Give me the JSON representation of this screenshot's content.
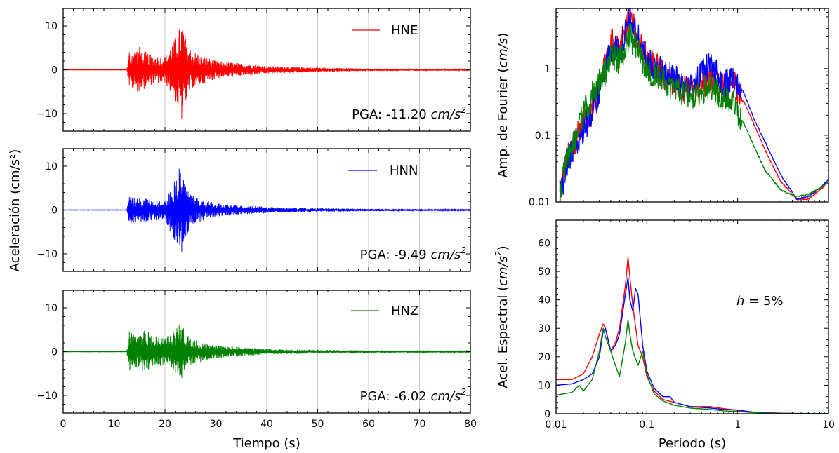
{
  "chart_data": [
    {
      "type": "line",
      "panel": "HNE",
      "xlabel": "Tiempo (s)",
      "ylabel": "Aceleración (cm/s²)",
      "xlim": [
        0,
        80
      ],
      "ylim": [
        -14,
        14
      ],
      "xticks": [
        "0",
        "10",
        "20",
        "30",
        "40",
        "50",
        "60",
        "70",
        "80"
      ],
      "yticks": [
        "−10",
        "0",
        "10"
      ],
      "grid": "x",
      "legend": "top-right",
      "series": [
        {
          "name": "HNE",
          "color": "#ff0000",
          "x": [
            0,
            12.5,
            13,
            15,
            17,
            20,
            22.8,
            23.3,
            25,
            30,
            40,
            50,
            60,
            70,
            80
          ],
          "y": [
            0,
            0,
            4.0,
            5.2,
            3.5,
            3.0,
            9.1,
            -11.2,
            4.5,
            2.0,
            0.9,
            0.5,
            0.3,
            0.25,
            0.2
          ]
        }
      ],
      "annotation": {
        "prefix": "PGA: -11.20 ",
        "unit_base": "cm/s",
        "unit_exp": "2"
      }
    },
    {
      "type": "line",
      "panel": "HNN",
      "xlim": [
        0,
        80
      ],
      "ylim": [
        -14,
        14
      ],
      "xticks": [
        "0",
        "10",
        "20",
        "30",
        "40",
        "50",
        "60",
        "70",
        "80"
      ],
      "yticks": [
        "−10",
        "0",
        "10"
      ],
      "grid": "x",
      "legend": "top-right",
      "series": [
        {
          "name": "HNN",
          "color": "#0000ff",
          "x": [
            0,
            12.5,
            13,
            15,
            17,
            20,
            22.8,
            23.3,
            25,
            30,
            40,
            50,
            60,
            70,
            80
          ],
          "y": [
            0,
            0,
            3.0,
            2.8,
            2.5,
            2.2,
            9.4,
            -9.49,
            3.5,
            1.5,
            0.7,
            0.4,
            0.3,
            0.2,
            0.2
          ]
        }
      ],
      "annotation": {
        "prefix": "PGA: -9.49 ",
        "unit_base": "cm/s",
        "unit_exp": "2"
      }
    },
    {
      "type": "line",
      "panel": "HNZ",
      "xlim": [
        0,
        80
      ],
      "ylim": [
        -14,
        14
      ],
      "xticks": [
        "0",
        "10",
        "20",
        "30",
        "40",
        "50",
        "60",
        "70",
        "80"
      ],
      "yticks": [
        "−10",
        "0",
        "10"
      ],
      "grid": "x",
      "legend": "top-right",
      "series": [
        {
          "name": "HNZ",
          "color": "#008000",
          "x": [
            0,
            12.5,
            13,
            15,
            16,
            20,
            22.8,
            23.3,
            25,
            30,
            40,
            50,
            60,
            70,
            80
          ],
          "y": [
            0,
            0,
            4.6,
            3.5,
            5.0,
            3.0,
            6.0,
            -6.02,
            3.0,
            1.5,
            0.6,
            0.4,
            0.3,
            0.2,
            0.2
          ]
        }
      ],
      "annotation": {
        "prefix": "PGA: -6.02 ",
        "unit_base": "cm/s",
        "unit_exp": "2"
      }
    },
    {
      "type": "line",
      "panel": "fourier",
      "ylabel_prefix": "Amp. de Fourier (",
      "ylabel_unit": "cm/s",
      "ylabel_suffix": ")",
      "xscale": "log",
      "yscale": "log",
      "xlim": [
        0.01,
        10
      ],
      "ylim": [
        0.01,
        8
      ],
      "yticks": [
        "0.01",
        "0.1",
        "1"
      ],
      "series": [
        {
          "color": "#ff0000",
          "x": [
            0.011,
            0.013,
            0.016,
            0.02,
            0.025,
            0.03,
            0.035,
            0.04,
            0.05,
            0.065,
            0.08,
            0.1,
            0.15,
            0.2,
            0.3,
            0.5,
            0.7,
            0.9,
            1.0,
            1.2,
            1.5,
            2,
            3,
            4.5,
            6,
            8,
            10
          ],
          "y": [
            0.011,
            0.04,
            0.08,
            0.15,
            0.25,
            0.5,
            1.5,
            2.5,
            2.0,
            6.5,
            2.5,
            1.5,
            0.8,
            0.6,
            0.45,
            0.7,
            0.5,
            0.65,
            0.4,
            0.3,
            0.15,
            0.06,
            0.02,
            0.011,
            0.011,
            0.015,
            0.02
          ]
        },
        {
          "color": "#0000ff",
          "x": [
            0.011,
            0.013,
            0.016,
            0.02,
            0.025,
            0.03,
            0.035,
            0.04,
            0.05,
            0.065,
            0.08,
            0.1,
            0.15,
            0.2,
            0.3,
            0.5,
            0.7,
            0.9,
            1.0,
            1.2,
            1.5,
            2,
            3,
            4.5,
            6,
            8,
            10
          ],
          "y": [
            0.012,
            0.035,
            0.07,
            0.12,
            0.22,
            0.4,
            1.0,
            2.0,
            1.8,
            5.5,
            3.0,
            1.2,
            0.9,
            0.7,
            0.5,
            1.2,
            0.55,
            0.7,
            0.65,
            0.4,
            0.18,
            0.08,
            0.025,
            0.011,
            0.012,
            0.016,
            0.022
          ]
        },
        {
          "color": "#008000",
          "x": [
            0.011,
            0.013,
            0.016,
            0.02,
            0.025,
            0.03,
            0.035,
            0.04,
            0.05,
            0.065,
            0.08,
            0.1,
            0.15,
            0.2,
            0.3,
            0.5,
            0.7,
            0.9,
            1.0,
            1.2,
            1.5,
            2,
            3,
            4.5,
            6,
            8,
            10
          ],
          "y": [
            0.013,
            0.04,
            0.09,
            0.2,
            0.4,
            0.6,
            0.9,
            1.5,
            1.3,
            3.0,
            2.0,
            1.0,
            0.7,
            0.5,
            0.4,
            0.55,
            0.35,
            0.3,
            0.22,
            0.14,
            0.07,
            0.03,
            0.015,
            0.012,
            0.013,
            0.016,
            0.02
          ]
        }
      ]
    },
    {
      "type": "line",
      "panel": "spectral",
      "xlabel": "Periodo (s)",
      "ylabel_prefix": "Acel. Espectral (",
      "ylabel_unit": "cm/s",
      "ylabel_exp": "2",
      "ylabel_suffix": ")",
      "xscale": "log",
      "xlim": [
        0.01,
        10
      ],
      "ylim": [
        0,
        68
      ],
      "xticks": [
        "0.01",
        "0.1",
        "1",
        "10"
      ],
      "yticks": [
        "0",
        "10",
        "20",
        "30",
        "40",
        "50",
        "60"
      ],
      "annotation": {
        "var": "h",
        "value": " = 5%"
      },
      "series": [
        {
          "color": "#ff0000",
          "x": [
            0.01,
            0.015,
            0.02,
            0.025,
            0.03,
            0.033,
            0.035,
            0.04,
            0.045,
            0.05,
            0.058,
            0.062,
            0.065,
            0.07,
            0.08,
            0.09,
            0.1,
            0.12,
            0.15,
            0.2,
            0.3,
            0.5,
            0.7,
            1.0,
            1.5,
            2,
            3,
            5,
            10
          ],
          "y": [
            12,
            12,
            14,
            20,
            28,
            31.5,
            30,
            22,
            25,
            30,
            45,
            55,
            48,
            38,
            24,
            20,
            13,
            8,
            5,
            4,
            2.5,
            2.5,
            1.8,
            1.2,
            0.6,
            0.4,
            0.2,
            0.1,
            0.05
          ]
        },
        {
          "color": "#0000ff",
          "x": [
            0.01,
            0.015,
            0.02,
            0.025,
            0.03,
            0.033,
            0.035,
            0.04,
            0.045,
            0.05,
            0.058,
            0.062,
            0.065,
            0.07,
            0.075,
            0.08,
            0.09,
            0.1,
            0.12,
            0.15,
            0.18,
            0.2,
            0.3,
            0.5,
            0.7,
            1.0,
            1.5,
            2,
            3,
            5,
            10
          ],
          "y": [
            10,
            10.5,
            12,
            14,
            20,
            29,
            30,
            22,
            24,
            28,
            42,
            48,
            40,
            36,
            44,
            42,
            24,
            15,
            9,
            6,
            6,
            4,
            2.5,
            2.0,
            1.5,
            1.3,
            0.5,
            0.3,
            0.15,
            0.08,
            0.04
          ]
        },
        {
          "color": "#008000",
          "x": [
            0.01,
            0.015,
            0.018,
            0.02,
            0.025,
            0.03,
            0.033,
            0.035,
            0.04,
            0.045,
            0.05,
            0.058,
            0.062,
            0.065,
            0.07,
            0.08,
            0.09,
            0.1,
            0.12,
            0.15,
            0.2,
            0.3,
            0.5,
            0.7,
            1.0,
            1.5,
            2,
            3,
            5,
            10
          ],
          "y": [
            6.5,
            7.5,
            10,
            8,
            12,
            22,
            30,
            27,
            22,
            17,
            13,
            25,
            33,
            28,
            22,
            17,
            22,
            14,
            7,
            4.5,
            3,
            2,
            1.5,
            1.0,
            0.8,
            0.4,
            0.2,
            0.1,
            0.05,
            0.03
          ]
        }
      ]
    }
  ]
}
